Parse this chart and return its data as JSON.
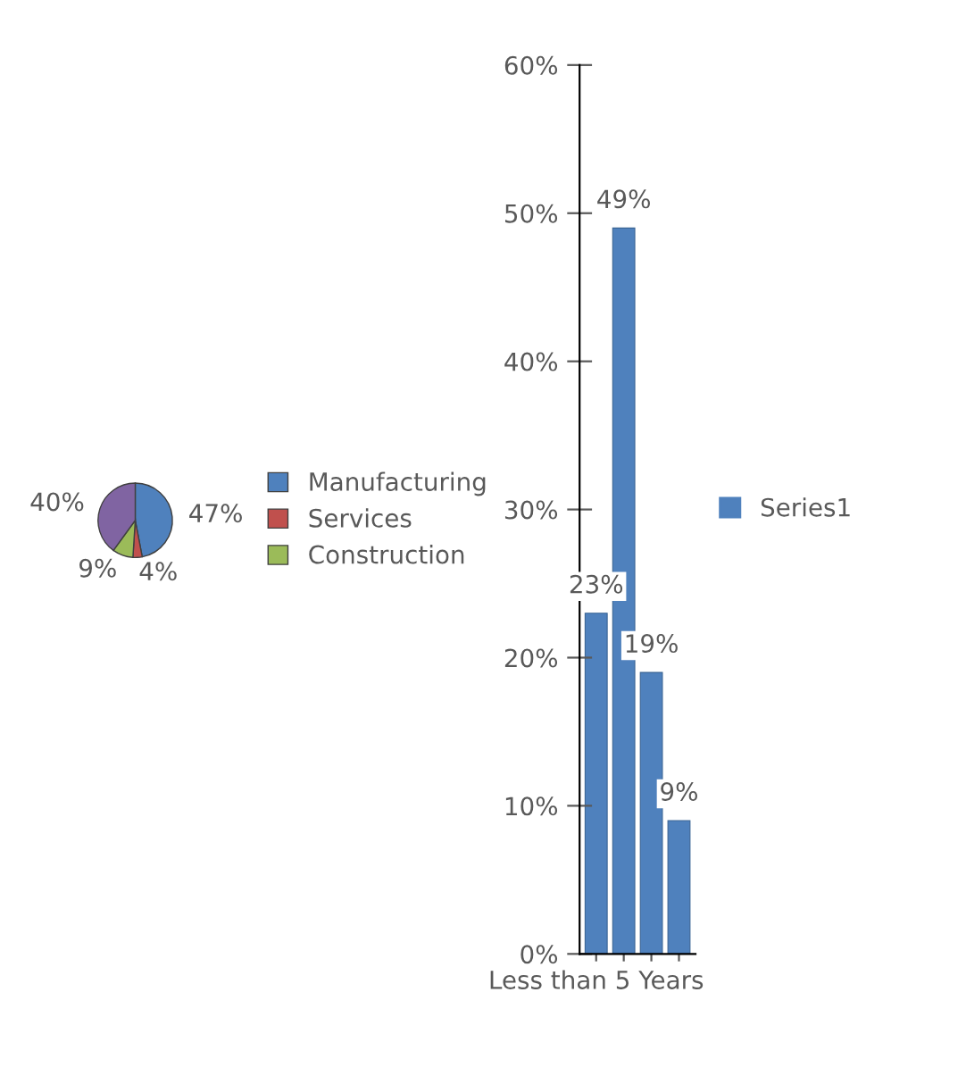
{
  "chart_data": [
    {
      "type": "pie",
      "categories": [
        "Manufacturing",
        "Services",
        "Construction",
        null
      ],
      "values": [
        47,
        4,
        9,
        40
      ],
      "colors": [
        "#4f81bd",
        "#c0504d",
        "#9bbb59",
        "#8064a2"
      ],
      "value_labels": [
        "47%",
        "4%",
        "9%",
        "40%"
      ],
      "legend": "right"
    },
    {
      "type": "bar",
      "categories": [
        "Less than 5 Years",
        null,
        null,
        null
      ],
      "series": [
        {
          "name": "Series1",
          "color": "#4f81bd",
          "values": [
            23,
            49,
            19,
            9
          ]
        }
      ],
      "value_labels": [
        "23%",
        "49%",
        "19%",
        "9%"
      ],
      "ylim": [
        0,
        60
      ],
      "yticks": [
        {
          "value": 0,
          "label": "0%"
        },
        {
          "value": 10,
          "label": "10%"
        },
        {
          "value": 20,
          "label": "20%"
        },
        {
          "value": 30,
          "label": "30%"
        },
        {
          "value": 40,
          "label": "40%"
        },
        {
          "value": 50,
          "label": "50%"
        },
        {
          "value": 60,
          "label": "60%"
        }
      ],
      "legend": "right"
    }
  ]
}
